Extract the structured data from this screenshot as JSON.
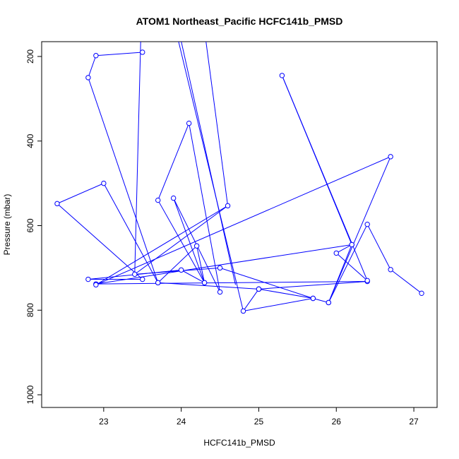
{
  "chart_data": {
    "type": "line",
    "title": "ATOM1 Northeast_Pacific HCFC141b_PMSD",
    "xlabel": "HCFC141b_PMSD",
    "ylabel": "Pressure (mbar)",
    "xlim": [
      22.2,
      27.3
    ],
    "ylim": [
      1030,
      165
    ],
    "y_reversed": true,
    "xticks": [
      23,
      24,
      25,
      26,
      27
    ],
    "yticks": [
      200,
      400,
      600,
      800,
      1000
    ],
    "grid": false,
    "legend": "none",
    "series": [
      {
        "color": "#0000ff",
        "points": [
          [
            23.5,
            190
          ],
          [
            22.9,
            198
          ],
          [
            22.8,
            250
          ],
          [
            23.7,
            735
          ],
          [
            23.0,
            500
          ],
          [
            22.4,
            548
          ],
          [
            23.5,
            727
          ],
          [
            22.8,
            727
          ],
          [
            24.0,
            705
          ],
          [
            24.3,
            735
          ],
          [
            23.9,
            535
          ],
          [
            24.5,
            757
          ],
          [
            24.1,
            358
          ],
          [
            23.7,
            540
          ],
          [
            24.3,
            735
          ],
          [
            24.2,
            648
          ],
          [
            23.7,
            735
          ],
          [
            25.0,
            750
          ],
          [
            25.0,
            750
          ],
          [
            25.7,
            772
          ],
          [
            24.8,
            802
          ],
          [
            25.0,
            750
          ],
          [
            26.4,
            732
          ],
          [
            22.9,
            738
          ],
          [
            26.2,
            645
          ],
          [
            26.0,
            665
          ],
          [
            26.4,
            730
          ],
          [
            25.3,
            245
          ],
          [
            26.2,
            645
          ],
          [
            25.9,
            782
          ],
          [
            26.7,
            437
          ],
          [
            22.9,
            740
          ],
          [
            24.6,
            553
          ],
          [
            23.4,
            715
          ],
          [
            24.5,
            700
          ],
          [
            25.7,
            772
          ],
          [
            25.9,
            782
          ],
          [
            26.4,
            597
          ],
          [
            26.7,
            704
          ],
          [
            27.1,
            760
          ]
        ],
        "offscale_connectors": [
          [
            [
              23.4,
              715
            ],
            [
              23.5,
              0
            ]
          ],
          [
            [
              23.8,
              0
            ],
            [
              24.7,
              740
            ]
          ],
          [
            [
              24.8,
              802
            ],
            [
              23.75,
              0
            ]
          ],
          [
            [
              24.2,
              0
            ],
            [
              24.6,
              553
            ]
          ]
        ]
      }
    ]
  }
}
